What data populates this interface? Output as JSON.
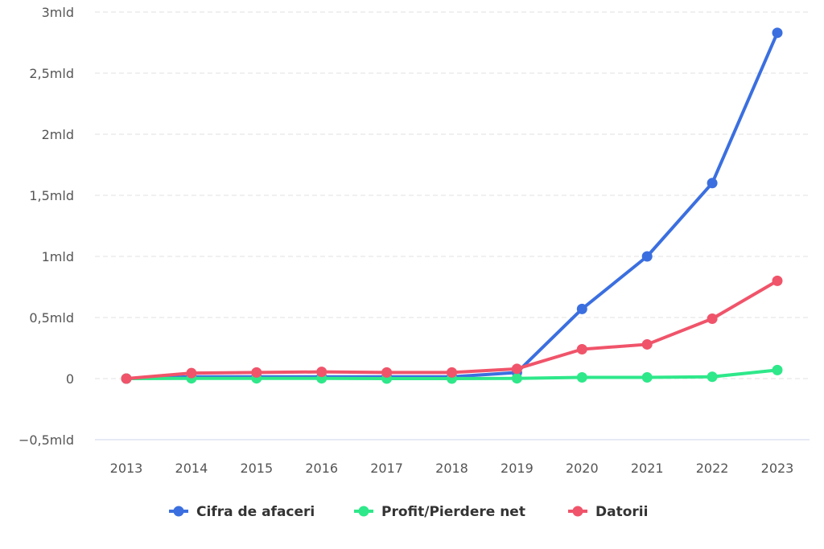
{
  "chart_data": {
    "type": "line",
    "title": "",
    "xlabel": "",
    "ylabel": "",
    "categories": [
      "2013",
      "2014",
      "2015",
      "2016",
      "2017",
      "2018",
      "2019",
      "2020",
      "2021",
      "2022",
      "2023"
    ],
    "ylim": [
      -0.5,
      3
    ],
    "yticks": [
      {
        "v": -0.5,
        "label": "−0,5mld"
      },
      {
        "v": 0,
        "label": "0"
      },
      {
        "v": 0.5,
        "label": "0,5mld"
      },
      {
        "v": 1,
        "label": "1mld"
      },
      {
        "v": 1.5,
        "label": "1,5mld"
      },
      {
        "v": 2,
        "label": "2mld"
      },
      {
        "v": 2.5,
        "label": "2,5mld"
      },
      {
        "v": 3,
        "label": "3mld"
      }
    ],
    "unit": "mld",
    "grid": true,
    "legend": "bottom",
    "series": [
      {
        "name": "Cifra de afaceri",
        "color": "#3b6fe0",
        "values": [
          0,
          0.015,
          0.015,
          0.015,
          0.015,
          0.015,
          0.05,
          0.57,
          1.0,
          1.6,
          2.83
        ]
      },
      {
        "name": "Profit/Pierdere net",
        "color": "#2ee88a",
        "values": [
          0,
          0.002,
          0.002,
          0.002,
          0.0,
          0.0,
          0.002,
          0.01,
          0.01,
          0.015,
          0.07
        ]
      },
      {
        "name": "Datorii",
        "color": "#f0546a",
        "values": [
          0,
          0.045,
          0.05,
          0.055,
          0.05,
          0.05,
          0.08,
          0.24,
          0.28,
          0.49,
          0.8
        ]
      }
    ]
  }
}
